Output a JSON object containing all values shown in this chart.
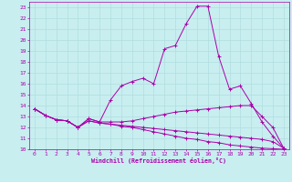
{
  "xlabel": "Windchill (Refroidissement éolien,°C)",
  "xlim": [
    -0.5,
    23.5
  ],
  "ylim": [
    10,
    23.5
  ],
  "xticks": [
    0,
    1,
    2,
    3,
    4,
    5,
    6,
    7,
    8,
    9,
    10,
    11,
    12,
    13,
    14,
    15,
    16,
    17,
    18,
    19,
    20,
    21,
    22,
    23
  ],
  "yticks": [
    10,
    11,
    12,
    13,
    14,
    15,
    16,
    17,
    18,
    19,
    20,
    21,
    22,
    23
  ],
  "bg_color": "#c8eef0",
  "line_color": "#aa00aa",
  "grid_color": "#b0dde0",
  "lines": [
    {
      "x": [
        0,
        1,
        2,
        3,
        4,
        5,
        6,
        7,
        8,
        9,
        10,
        11,
        12,
        13,
        14,
        15,
        16,
        17,
        18,
        19,
        20,
        21,
        22,
        23
      ],
      "y": [
        13.7,
        13.1,
        12.7,
        12.6,
        12.0,
        12.8,
        12.5,
        14.5,
        15.8,
        16.2,
        16.5,
        16.0,
        19.2,
        19.5,
        21.5,
        23.1,
        23.1,
        18.5,
        15.5,
        15.8,
        14.2,
        12.5,
        11.2,
        10.1
      ]
    },
    {
      "x": [
        0,
        1,
        2,
        3,
        4,
        5,
        6,
        7,
        8,
        9,
        10,
        11,
        12,
        13,
        14,
        15,
        16,
        17,
        18,
        19,
        20,
        21,
        22,
        23
      ],
      "y": [
        13.7,
        13.1,
        12.7,
        12.6,
        12.0,
        12.8,
        12.5,
        12.5,
        12.5,
        12.6,
        12.8,
        13.0,
        13.2,
        13.4,
        13.5,
        13.6,
        13.7,
        13.8,
        13.9,
        14.0,
        14.0,
        13.0,
        12.0,
        10.1
      ]
    },
    {
      "x": [
        0,
        1,
        2,
        3,
        4,
        5,
        6,
        7,
        8,
        9,
        10,
        11,
        12,
        13,
        14,
        15,
        16,
        17,
        18,
        19,
        20,
        21,
        22,
        23
      ],
      "y": [
        13.7,
        13.1,
        12.7,
        12.6,
        12.0,
        12.6,
        12.4,
        12.3,
        12.2,
        12.1,
        12.0,
        11.9,
        11.8,
        11.7,
        11.6,
        11.5,
        11.4,
        11.3,
        11.2,
        11.1,
        11.0,
        10.9,
        10.7,
        10.1
      ]
    },
    {
      "x": [
        0,
        1,
        2,
        3,
        4,
        5,
        6,
        7,
        8,
        9,
        10,
        11,
        12,
        13,
        14,
        15,
        16,
        17,
        18,
        19,
        20,
        21,
        22,
        23
      ],
      "y": [
        13.7,
        13.1,
        12.7,
        12.6,
        12.0,
        12.6,
        12.4,
        12.3,
        12.1,
        12.0,
        11.8,
        11.6,
        11.4,
        11.2,
        11.0,
        10.9,
        10.7,
        10.6,
        10.4,
        10.3,
        10.2,
        10.1,
        10.05,
        10.0
      ]
    }
  ]
}
